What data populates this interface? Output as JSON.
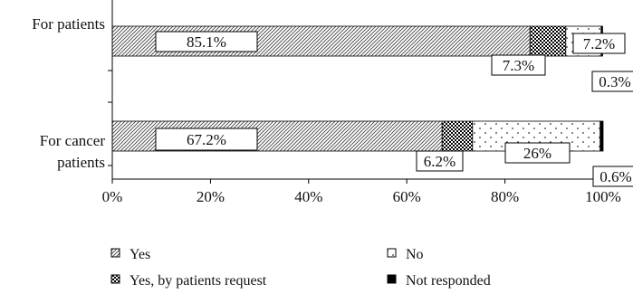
{
  "chart_data": {
    "type": "bar",
    "orientation": "horizontal",
    "stacked": true,
    "categories": [
      "For patients",
      "For cancer patients"
    ],
    "category_lines": [
      [
        "For patients"
      ],
      [
        "For cancer",
        "patients"
      ]
    ],
    "series": [
      {
        "name": "Yes",
        "values": [
          85.1,
          67.2
        ],
        "labels": [
          "85.1%",
          "67.2%"
        ],
        "pattern": "hatch"
      },
      {
        "name": "Yes, by patients request",
        "values": [
          7.3,
          6.2
        ],
        "labels": [
          "7.3%",
          "6.2%"
        ],
        "pattern": "checker"
      },
      {
        "name": "No",
        "values": [
          7.2,
          26.0
        ],
        "labels": [
          "7.2%",
          "26%"
        ],
        "pattern": "dots"
      },
      {
        "name": "Not responded",
        "values": [
          0.3,
          0.6
        ],
        "labels": [
          "0.3%",
          "0.6%"
        ],
        "pattern": "solid"
      }
    ],
    "xlim": [
      0,
      100
    ],
    "xticks": [
      "0%",
      "20%",
      "40%",
      "60%",
      "80%",
      "100%"
    ],
    "grid": false,
    "legend_position": "bottom"
  }
}
